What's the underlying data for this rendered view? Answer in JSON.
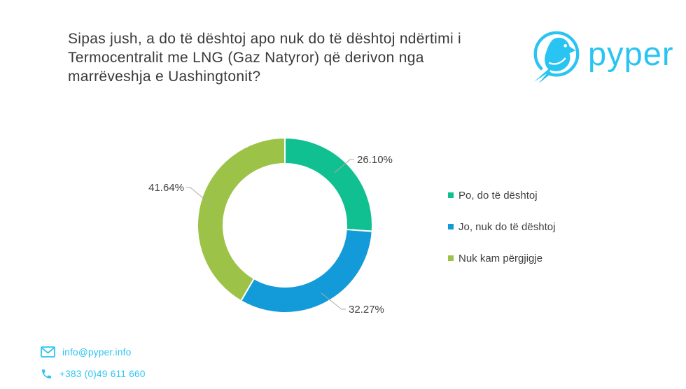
{
  "header": {
    "title_lines": [
      "Sipas jush, a do të dështoj apo nuk do të dështoj ndërtimi i",
      "Termocentralit me LNG (Gaz Natyror) që derivon nga",
      "marrëveshja e Uashingtonit?"
    ]
  },
  "logo": {
    "text": "pyper",
    "icon": "bird-in-circle-icon",
    "brand_color": "#29C4F2"
  },
  "chart_data": {
    "type": "pie",
    "subtype": "donut",
    "title": "",
    "categories": [
      "Po, do të dështoj",
      "Jo, nuk do të dështoj",
      "Nuk kam përgjigje"
    ],
    "values": [
      26.1,
      32.27,
      41.64
    ],
    "labels": [
      "26.10%",
      "32.27%",
      "41.64%"
    ],
    "colors": [
      "#10C090",
      "#129BD8",
      "#9CC247"
    ],
    "start_angle_deg": 0,
    "direction": "clockwise",
    "legend_position": "right",
    "donut_hole_ratio": 0.7,
    "label_color": "#404040",
    "leader_line_color": "#ababab"
  },
  "contact": {
    "email_icon": "envelope-icon",
    "email": "info@pyper.info",
    "phone_icon": "phone-icon",
    "phone": "+383 (0)49 611 660"
  }
}
